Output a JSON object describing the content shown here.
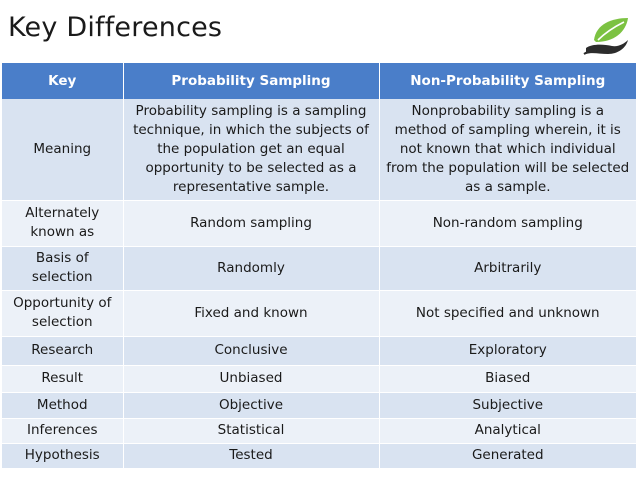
{
  "title": "Key Differences",
  "header": {
    "key": "Key",
    "col1": "Probability Sampling",
    "col2": "Non-Probability Sampling"
  },
  "rows": [
    {
      "key": "Meaning",
      "prob": "Probability sampling is a sampling technique, in which the subjects of the population get an equal opportunity to be selected as a representative sample.",
      "nonprob": "Nonprobability sampling is a method of sampling wherein, it is not known that which individual from the population will be selected as a sample."
    },
    {
      "key": "Alternately known as",
      "prob": "Random sampling",
      "nonprob": "Non-random sampling"
    },
    {
      "key": "Basis of selection",
      "prob": "Randomly",
      "nonprob": "Arbitrarily"
    },
    {
      "key": "Opportunity of selection",
      "prob": "Fixed and known",
      "nonprob": "Not specified and unknown"
    },
    {
      "key": "Research",
      "prob": "Conclusive",
      "nonprob": "Exploratory"
    },
    {
      "key": "Result",
      "prob": "Unbiased",
      "nonprob": "Biased"
    },
    {
      "key": "Method",
      "prob": "Objective",
      "nonprob": "Subjective"
    },
    {
      "key": "Inferences",
      "prob": "Statistical",
      "nonprob": "Analytical"
    },
    {
      "key": "Hypothesis",
      "prob": "Tested",
      "nonprob": "Generated"
    }
  ],
  "colors": {
    "header": "#4a7ec9",
    "row_odd": "#d9e3f1",
    "row_even": "#ecf1f8",
    "logo_green": "#7cc242"
  },
  "logo": {
    "icon": "leaf-hand-logo-icon"
  }
}
